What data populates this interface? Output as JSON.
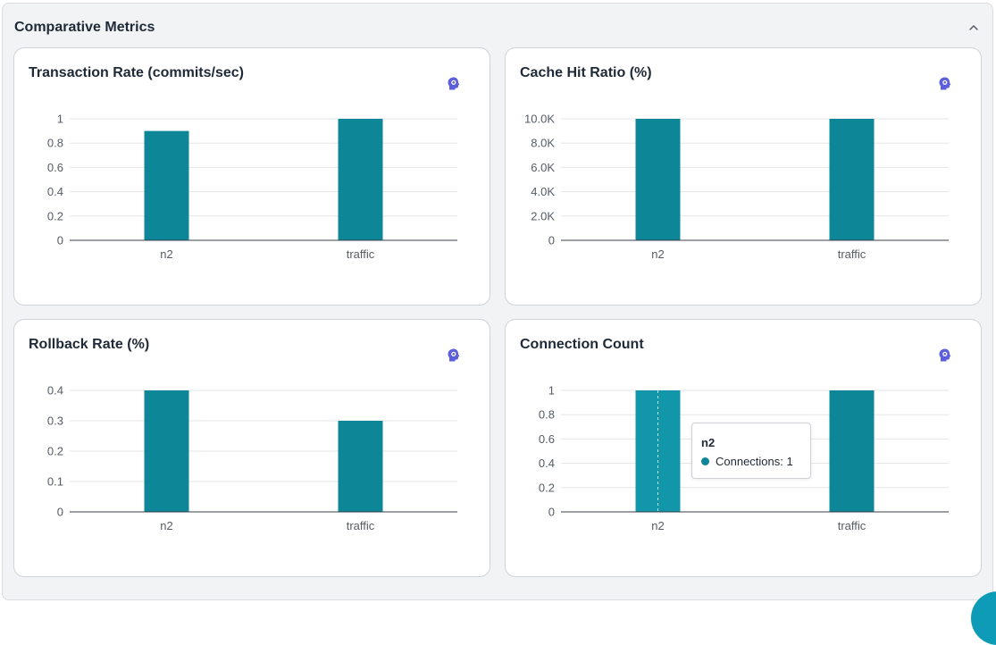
{
  "section": {
    "title": "Comparative Metrics",
    "collapse_icon": "chevron-up-icon"
  },
  "colors": {
    "bar": "#0d8698",
    "bar_hover": "#1297aa",
    "insight": "#5b5fdc",
    "grid": "#e3e5e8",
    "axis": "#3a3f47"
  },
  "tooltip": {
    "title": "n2",
    "series": "Connections",
    "value": "1",
    "label": "Connections: 1"
  },
  "chart_data": [
    {
      "type": "bar",
      "title": "Transaction Rate (commits/sec)",
      "categories": [
        "n2",
        "traffic"
      ],
      "values": [
        0.9,
        1
      ],
      "ylim": [
        0,
        1
      ],
      "yticks": [
        0,
        0.2,
        0.4,
        0.6,
        0.8,
        1
      ],
      "ytick_labels": [
        "0",
        "0.2",
        "0.4",
        "0.6",
        "0.8",
        "1"
      ],
      "grid": true
    },
    {
      "type": "bar",
      "title": "Cache Hit Ratio (%)",
      "categories": [
        "n2",
        "traffic"
      ],
      "values": [
        10000,
        10000
      ],
      "ylim": [
        0,
        10000
      ],
      "yticks": [
        0,
        2000,
        4000,
        6000,
        8000,
        10000
      ],
      "ytick_labels": [
        "0",
        "2.0K",
        "4.0K",
        "6.0K",
        "8.0K",
        "10.0K"
      ],
      "grid": true
    },
    {
      "type": "bar",
      "title": "Rollback Rate (%)",
      "categories": [
        "n2",
        "traffic"
      ],
      "values": [
        0.4,
        0.3
      ],
      "ylim": [
        0,
        0.4
      ],
      "yticks": [
        0,
        0.1,
        0.2,
        0.3,
        0.4
      ],
      "ytick_labels": [
        "0",
        "0.1",
        "0.2",
        "0.3",
        "0.4"
      ],
      "grid": true
    },
    {
      "type": "bar",
      "title": "Connection Count",
      "categories": [
        "n2",
        "traffic"
      ],
      "values": [
        1,
        1
      ],
      "ylim": [
        0,
        1
      ],
      "yticks": [
        0,
        0.2,
        0.4,
        0.6,
        0.8,
        1
      ],
      "ytick_labels": [
        "0",
        "0.2",
        "0.4",
        "0.6",
        "0.8",
        "1"
      ],
      "grid": true,
      "hovered_category": "n2"
    }
  ]
}
